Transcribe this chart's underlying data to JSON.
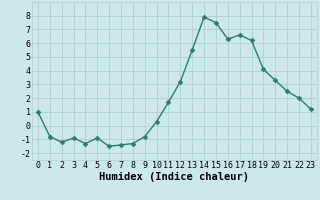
{
  "x": [
    0,
    1,
    2,
    3,
    4,
    5,
    6,
    7,
    8,
    9,
    10,
    11,
    12,
    13,
    14,
    15,
    16,
    17,
    18,
    19,
    20,
    21,
    22,
    23
  ],
  "y": [
    1.0,
    -0.8,
    -1.2,
    -0.9,
    -1.3,
    -0.9,
    -1.5,
    -1.4,
    -1.3,
    -0.8,
    0.3,
    1.7,
    3.2,
    5.5,
    7.9,
    7.5,
    6.3,
    6.6,
    6.2,
    4.1,
    3.3,
    2.5,
    2.0,
    1.2
  ],
  "line_color": "#2d7d6e",
  "marker": "D",
  "marker_size": 2.5,
  "bg_color": "#cce8e8",
  "grid_color": "#aed0d0",
  "xlabel": "Humidex (Indice chaleur)",
  "xlim": [
    -0.5,
    23.5
  ],
  "ylim": [
    -2.5,
    9.0
  ],
  "yticks": [
    -2,
    -1,
    0,
    1,
    2,
    3,
    4,
    5,
    6,
    7,
    8
  ],
  "xticks": [
    0,
    1,
    2,
    3,
    4,
    5,
    6,
    7,
    8,
    9,
    10,
    11,
    12,
    13,
    14,
    15,
    16,
    17,
    18,
    19,
    20,
    21,
    22,
    23
  ],
  "tick_fontsize": 6.0,
  "xlabel_fontsize": 7.5,
  "line_width": 1.0
}
